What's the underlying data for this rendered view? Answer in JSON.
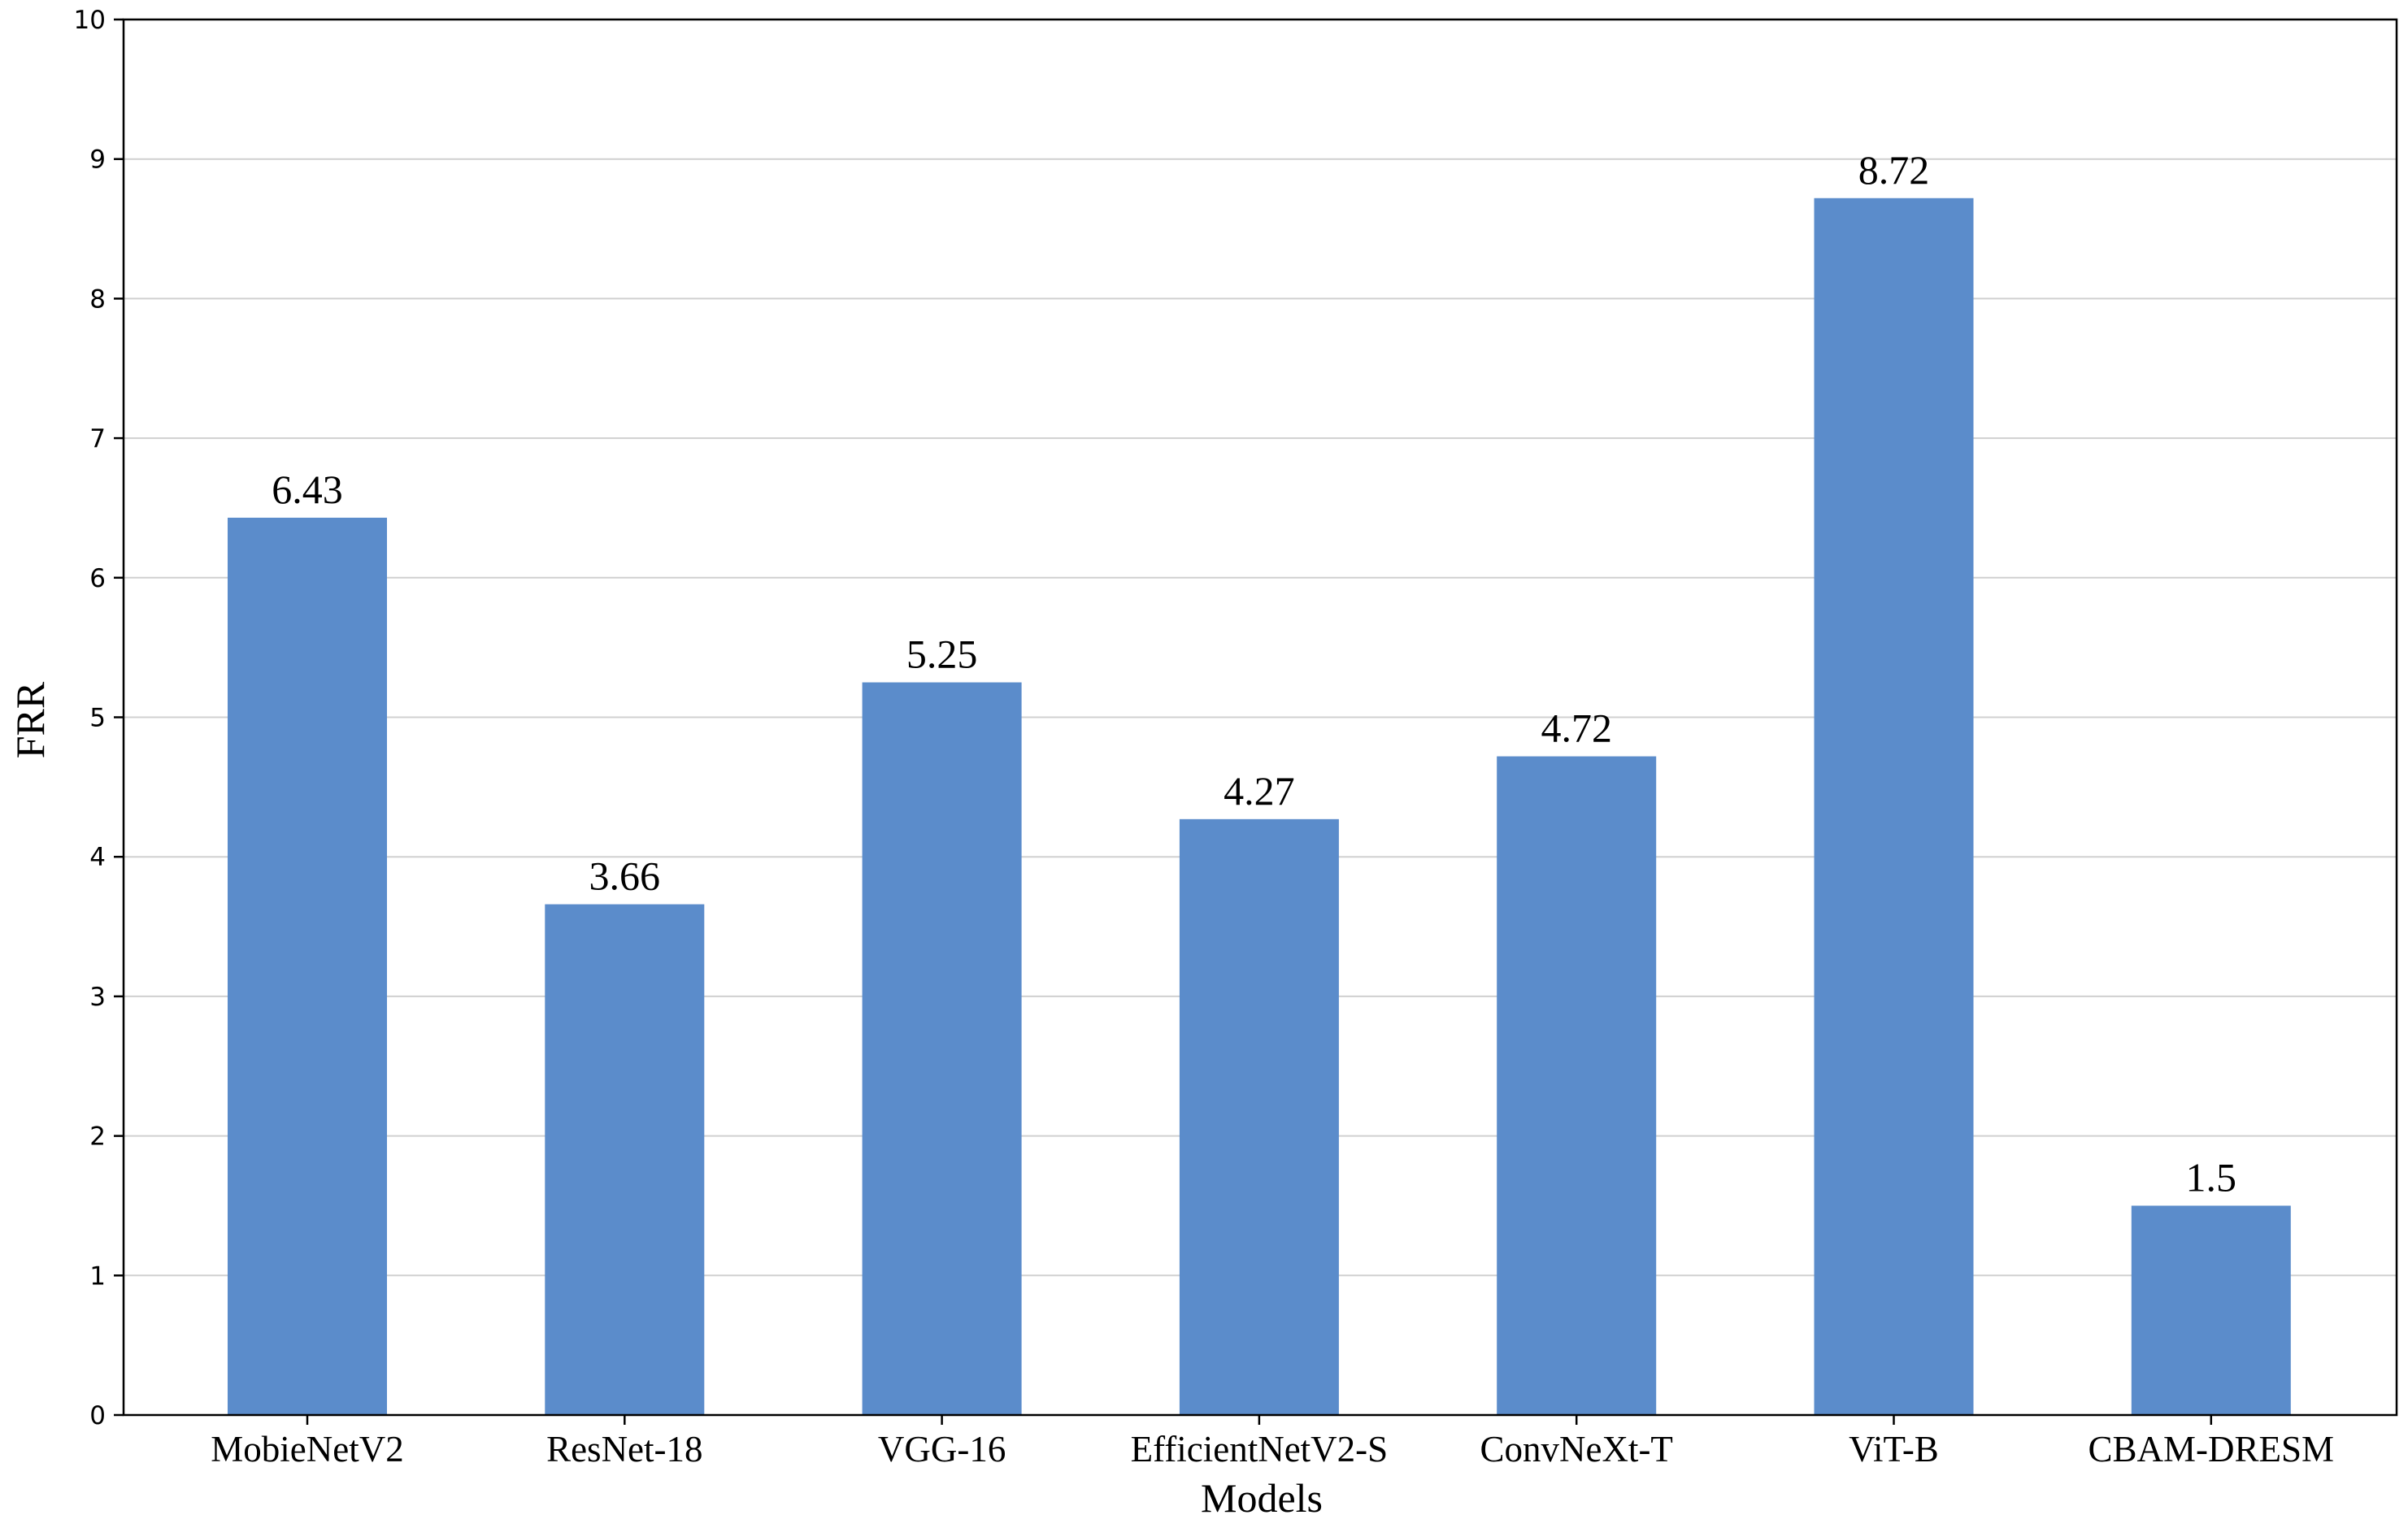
{
  "chart_data": {
    "type": "bar",
    "title": "",
    "xlabel": "Models",
    "ylabel": "FRR",
    "ylim": [
      0,
      10
    ],
    "yticks": [
      "0",
      "1",
      "2",
      "3",
      "4",
      "5",
      "6",
      "7",
      "8",
      "9",
      "10"
    ],
    "grid": "horizontal",
    "categories": [
      "MobieNetV2",
      "ResNet-18",
      "VGG-16",
      "EfficientNetV2-S",
      "ConvNeXt-T",
      "ViT-B",
      "CBAM-DRESM"
    ],
    "values": [
      6.43,
      3.66,
      5.25,
      4.27,
      4.72,
      8.72,
      1.5
    ],
    "data_labels": [
      "6.43",
      "3.66",
      "5.25",
      "4.27",
      "4.72",
      "8.72",
      "1.5"
    ],
    "bar_color": "#5b8ccb",
    "grid_color": "#d0d0d0"
  }
}
